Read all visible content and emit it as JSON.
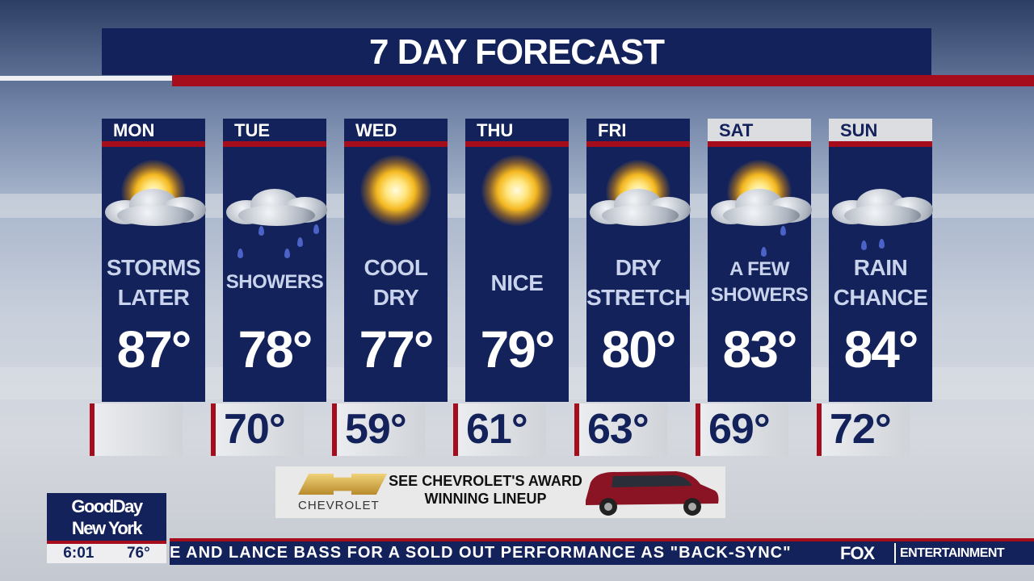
{
  "title": "7 DAY FORECAST",
  "days": [
    {
      "day": "MON",
      "cond": [
        "STORMS",
        "LATER"
      ],
      "high": "87°",
      "low": "",
      "icon": "partly-sunny-icon"
    },
    {
      "day": "TUE",
      "cond": [
        "SHOWERS"
      ],
      "high": "78°",
      "low": "70°",
      "icon": "rain-showers-icon"
    },
    {
      "day": "WED",
      "cond": [
        "COOL",
        "DRY"
      ],
      "high": "77°",
      "low": "59°",
      "icon": "sun-icon"
    },
    {
      "day": "THU",
      "cond": [
        "NICE"
      ],
      "high": "79°",
      "low": "61°",
      "icon": "sun-icon"
    },
    {
      "day": "FRI",
      "cond": [
        "DRY",
        "STRETCH"
      ],
      "high": "80°",
      "low": "63°",
      "icon": "partly-sunny-icon"
    },
    {
      "day": "SAT",
      "cond": [
        "A FEW",
        "SHOWERS"
      ],
      "high": "83°",
      "low": "69°",
      "icon": "partly-sunny-showers-icon"
    },
    {
      "day": "SUN",
      "cond": [
        "RAIN",
        "CHANCE"
      ],
      "high": "84°",
      "low": "72°",
      "icon": "cloudy-rain-icon"
    }
  ],
  "ad": {
    "brand": "CHEVROLET",
    "text": "SEE CHEVROLET'S AWARD WINNING LINEUP"
  },
  "show": {
    "line1": "GoodDay",
    "line2": "New York",
    "time": "6:01",
    "temp": "76°"
  },
  "ticker": {
    "text": "E AND LANCE BASS FOR A SOLD OUT PERFORMANCE AS \"BACK-SYNC\"",
    "network": "FOX",
    "category": "ENTERTAINMENT"
  },
  "colors": {
    "navy": "#13225a",
    "red": "#a50d1c"
  }
}
